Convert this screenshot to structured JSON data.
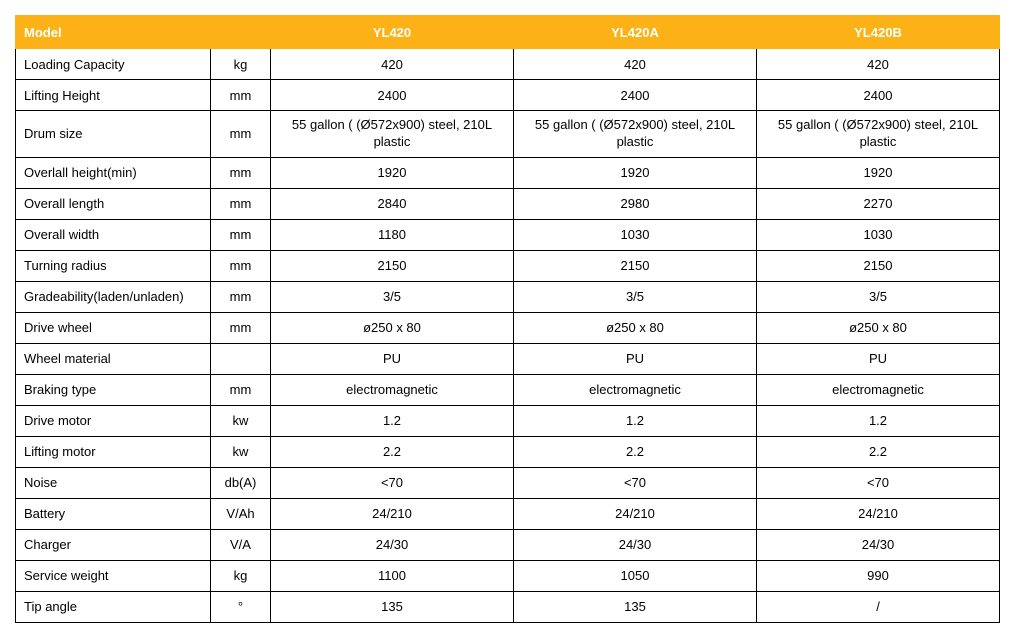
{
  "colors": {
    "header_bg": "#fcb116",
    "header_fg": "#ffffff",
    "border": "#000000",
    "cell_fg": "#000000",
    "page_bg": "#ffffff"
  },
  "header": {
    "label": "Model",
    "unit": "",
    "models": [
      "YL420",
      "YL420A",
      "YL420B"
    ]
  },
  "rows": [
    {
      "label": "Loading Capacity",
      "unit": "kg",
      "v": [
        "420",
        "420",
        "420"
      ]
    },
    {
      "label": "Lifting Height",
      "unit": "mm",
      "v": [
        "2400",
        "2400",
        "2400"
      ]
    },
    {
      "label": "Drum size",
      "unit": "mm",
      "v": [
        "55 gallon ( (Ø572x900) steel, 210L plastic",
        "55 gallon ( (Ø572x900) steel, 210L plastic",
        "55 gallon ( (Ø572x900) steel, 210L plastic"
      ]
    },
    {
      "label": "Overlall height(min)",
      "unit": "mm",
      "v": [
        "1920",
        "1920",
        "1920"
      ]
    },
    {
      "label": "Overall length",
      "unit": "mm",
      "v": [
        "2840",
        "2980",
        "2270"
      ]
    },
    {
      "label": "Overall width",
      "unit": "mm",
      "v": [
        "1180",
        "1030",
        "1030"
      ]
    },
    {
      "label": "Turning radius",
      "unit": "mm",
      "v": [
        "2150",
        "2150",
        "2150"
      ]
    },
    {
      "label": "Gradeability(laden/unladen)",
      "unit": "mm",
      "v": [
        "3/5",
        "3/5",
        "3/5"
      ]
    },
    {
      "label": "Drive wheel",
      "unit": "mm",
      "v": [
        "ø250 x 80",
        "ø250 x 80",
        "ø250 x 80"
      ]
    },
    {
      "label": "Wheel material",
      "unit": "",
      "v": [
        "PU",
        "PU",
        "PU"
      ]
    },
    {
      "label": "Braking type",
      "unit": "mm",
      "v": [
        "electromagnetic",
        "electromagnetic",
        "electromagnetic"
      ]
    },
    {
      "label": "Drive motor",
      "unit": "kw",
      "v": [
        "1.2",
        "1.2",
        "1.2"
      ]
    },
    {
      "label": "Lifting motor",
      "unit": "kw",
      "v": [
        "2.2",
        "2.2",
        "2.2"
      ]
    },
    {
      "label": "Noise",
      "unit": "db(A)",
      "v": [
        "<70",
        "<70",
        "<70"
      ]
    },
    {
      "label": "Battery",
      "unit": "V/Ah",
      "v": [
        "24/210",
        "24/210",
        "24/210"
      ]
    },
    {
      "label": "Charger",
      "unit": "V/A",
      "v": [
        "24/30",
        "24/30",
        "24/30"
      ]
    },
    {
      "label": "Service weight",
      "unit": "kg",
      "v": [
        "1100",
        "1050",
        "990"
      ]
    },
    {
      "label": "Tip angle",
      "unit": "°",
      "v": [
        "135",
        "135",
        "/"
      ]
    }
  ]
}
